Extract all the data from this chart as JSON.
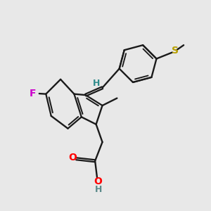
{
  "background_color": "#e8e8e8",
  "bond_color": "#1a1a1a",
  "atom_colors": {
    "F": "#cc00cc",
    "O": "#ff0000",
    "S": "#b8a000",
    "H_teal": "#2e8b8b",
    "H_gray": "#5a8a8a",
    "C": "#1a1a1a"
  },
  "figsize": [
    3.0,
    3.0
  ],
  "dpi": 100
}
